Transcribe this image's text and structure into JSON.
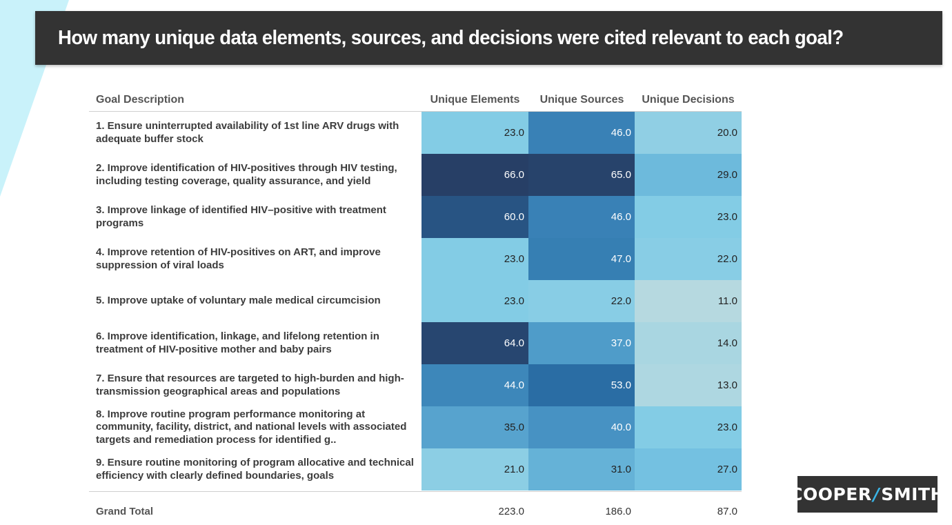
{
  "page": {
    "title": "How many unique data elements, sources, and decisions were cited relevant to each goal?"
  },
  "table": {
    "header": {
      "goal": "Goal Description",
      "elements": "Unique Elements",
      "sources": "Unique Sources",
      "decisions": "Unique Decisions"
    },
    "rows": [
      {
        "goal": "1. Ensure uninterrupted availability of 1st line ARV drugs with adequate buffer stock",
        "elements": "23.0",
        "sources": "46.0",
        "decisions": "20.0"
      },
      {
        "goal": "2. Improve identification of HIV-positives through HIV testing, including testing coverage, quality assurance, and yield",
        "elements": "66.0",
        "sources": "65.0",
        "decisions": "29.0"
      },
      {
        "goal": "3. Improve linkage of identified HIV–positive with treatment programs",
        "elements": "60.0",
        "sources": "46.0",
        "decisions": "23.0"
      },
      {
        "goal": "4. Improve retention of HIV-positives on ART, and improve suppression of viral loads",
        "elements": "23.0",
        "sources": "47.0",
        "decisions": "22.0"
      },
      {
        "goal": "5. Improve uptake of voluntary male medical circumcision",
        "elements": "23.0",
        "sources": "22.0",
        "decisions": "11.0"
      },
      {
        "goal": "6. Improve identification, linkage, and lifelong retention in treatment of HIV-positive mother and baby pairs",
        "elements": "64.0",
        "sources": "37.0",
        "decisions": "14.0"
      },
      {
        "goal": "7. Ensure that resources are targeted to high-burden and high-transmission geographical areas and populations",
        "elements": "44.0",
        "sources": "53.0",
        "decisions": "13.0"
      },
      {
        "goal": "8. Improve routine program performance monitoring at community, facility, district, and national levels with associated targets and remediation process for identified g..",
        "elements": "35.0",
        "sources": "40.0",
        "decisions": "23.0"
      },
      {
        "goal": "9. Ensure routine monitoring of program allocative and technical efficiency with clearly defined boundaries, goals",
        "elements": "21.0",
        "sources": "31.0",
        "decisions": "27.0"
      }
    ],
    "total": {
      "label": "Grand Total",
      "elements": "223.0",
      "sources": "186.0",
      "decisions": "87.0"
    }
  },
  "chart_data": {
    "type": "heatmap",
    "title": "How many unique data elements, sources, and decisions were cited relevant to each goal?",
    "columns": [
      "Unique Elements",
      "Unique Sources",
      "Unique Decisions"
    ],
    "rows": [
      "1",
      "2",
      "3",
      "4",
      "5",
      "6",
      "7",
      "8",
      "9"
    ],
    "values": [
      [
        23,
        46,
        20
      ],
      [
        66,
        65,
        29
      ],
      [
        60,
        46,
        23
      ],
      [
        23,
        47,
        22
      ],
      [
        23,
        22,
        11
      ],
      [
        64,
        37,
        14
      ],
      [
        44,
        53,
        13
      ],
      [
        35,
        40,
        23
      ],
      [
        21,
        31,
        27
      ]
    ],
    "totals": [
      223,
      186,
      87
    ],
    "color_scale": [
      "#b6d9e0",
      "#7ccae6",
      "#4a96c6",
      "#2a70a8",
      "#273f66"
    ]
  },
  "logo": {
    "left": "COOPER",
    "slash": "/",
    "right": "SMITH"
  },
  "colors": {
    "title_bar": "#333333",
    "accent": "#c9f2fa",
    "logo_slash": "#3ab4e6"
  }
}
